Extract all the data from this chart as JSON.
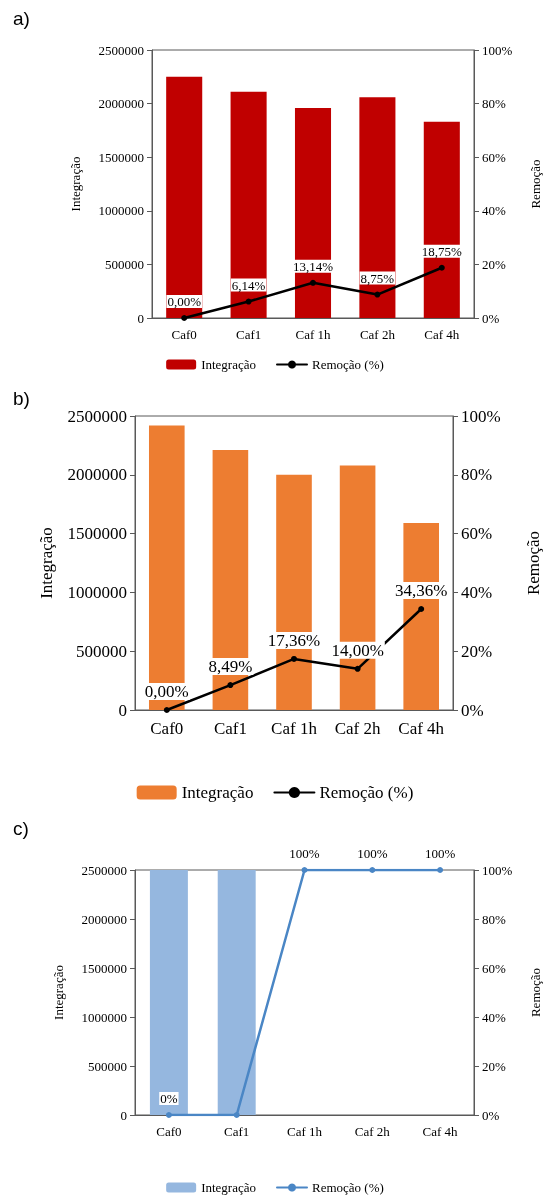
{
  "chart_data": [
    {
      "type": "bar",
      "title": "a)",
      "categories": [
        "Caf0",
        "Caf1",
        "Caf 1h",
        "Caf 2h",
        "Caf 4h"
      ],
      "ylabel": "Integração",
      "y2label": "Remoção",
      "ylim": [
        0,
        2500000
      ],
      "yticks": [
        0,
        500000,
        1000000,
        1500000,
        2000000,
        2500000
      ],
      "y2lim": [
        0,
        100
      ],
      "y2ticks": [
        {
          "value": 0,
          "label": "0%"
        },
        {
          "value": 20,
          "label": "20%"
        },
        {
          "value": 40,
          "label": "40%"
        },
        {
          "value": 60,
          "label": "60%"
        },
        {
          "value": 80,
          "label": "80%"
        },
        {
          "value": 100,
          "label": "100%"
        }
      ],
      "legend": "bottom",
      "marker": "circle",
      "line_style": "solid",
      "series": [
        {
          "name": "Integração",
          "color": "#c00000",
          "values": [
            2250000,
            2110000,
            1960000,
            2060000,
            1830000
          ]
        },
        {
          "name": "Remoção (%)",
          "type": "line",
          "axis": "y2",
          "color": "#000000",
          "values": [
            0,
            6.14,
            13.14,
            8.75,
            18.75
          ],
          "value_labels": [
            "0,00%",
            "6,14%",
            "13,14%",
            "8,75%",
            "18,75%"
          ]
        }
      ]
    },
    {
      "type": "bar",
      "title": "b)",
      "categories": [
        "Caf0",
        "Caf1",
        "Caf 1h",
        "Caf 2h",
        "Caf 4h"
      ],
      "ylabel": "Integração",
      "y2label": "Remoção",
      "ylim": [
        0,
        2500000
      ],
      "yticks": [
        0,
        500000,
        1000000,
        1500000,
        2000000,
        2500000
      ],
      "y2lim": [
        0,
        100
      ],
      "y2ticks": [
        {
          "value": 0,
          "label": "0%"
        },
        {
          "value": 20,
          "label": "20%"
        },
        {
          "value": 40,
          "label": "40%"
        },
        {
          "value": 60,
          "label": "60%"
        },
        {
          "value": 80,
          "label": "80%"
        },
        {
          "value": 100,
          "label": "100%"
        }
      ],
      "legend": "bottom",
      "marker": "circle",
      "line_style": "solid",
      "series": [
        {
          "name": "Integração",
          "color": "#ed7d31",
          "values": [
            2420000,
            2210000,
            2000000,
            2080000,
            1590000
          ]
        },
        {
          "name": "Remoção (%)",
          "type": "line",
          "axis": "y2",
          "color": "#000000",
          "values": [
            0,
            8.49,
            17.36,
            14.0,
            34.36
          ],
          "value_labels": [
            "0,00%",
            "8,49%",
            "17,36%",
            "14,00%",
            "34,36%"
          ]
        }
      ]
    },
    {
      "type": "bar",
      "title": "c)",
      "categories": [
        "Caf0",
        "Caf1",
        "Caf 1h",
        "Caf 2h",
        "Caf 4h"
      ],
      "ylabel": "Integração",
      "y2label": "Remoção",
      "ylim": [
        0,
        2500000
      ],
      "yticks": [
        0,
        500000,
        1000000,
        1500000,
        2000000,
        2500000
      ],
      "y2lim": [
        0,
        100
      ],
      "y2ticks": [
        {
          "value": 0,
          "label": "0%"
        },
        {
          "value": 20,
          "label": "20%"
        },
        {
          "value": 40,
          "label": "40%"
        },
        {
          "value": 60,
          "label": "60%"
        },
        {
          "value": 80,
          "label": "80%"
        },
        {
          "value": 100,
          "label": "100%"
        }
      ],
      "legend": "bottom",
      "marker": "circle",
      "line_style": "solid",
      "series": [
        {
          "name": "Integração",
          "color": "#95b7df",
          "values": [
            2500000,
            2500000,
            null,
            null,
            null
          ]
        },
        {
          "name": "Remoção (%)",
          "type": "line",
          "axis": "y2",
          "color": "#4a86c5",
          "values": [
            0,
            0,
            100,
            100,
            100
          ],
          "value_labels": [
            "0%",
            null,
            "100%",
            "100%",
            "100%"
          ]
        }
      ]
    }
  ]
}
